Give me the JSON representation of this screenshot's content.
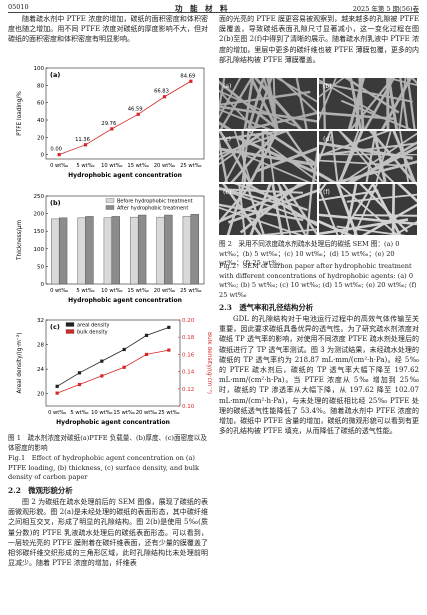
{
  "header": {
    "page": "05010",
    "journal": "功　能　材　料",
    "issue": "2025 年第 5 期(56)卷"
  },
  "left": {
    "intro": "随着疏水剂中 PTFE 浓度的增加，碳纸的面积密度和体积密度也随之增加。用不同 PTFE 浓度对碳纸的厚度影响不大，但对碳纸的面积密度和体积密度有明显影响。",
    "fig1_caption_cn": "图 1　疏水剂浓度对碳纸(a)PTFE 负载量、(b)厚度、(c)面密度以及体密度的影响",
    "fig1_caption_en": "Fig.1　Effect of hydrophobic agent concentration on (a) PTFE loading, (b) thickness, (c) surface density, and bulk density of carbon paper",
    "section_2_2": "2.2　微观形貌分析",
    "para_2_2": "图 2 为碳纸在疏水处理前后的 SEM 图像，展现了碳纸的表面微观形貌。图 2(a)是未经处理的碳纸的表面形态，其中碳纤维之间相互交叉，形成了明显的孔隙结构。图 2(b)是使用 5‰(质量分数)的 PTFE 乳液疏水处理后的碳纸表面形态。可以看到，一层较光亮的 PTFE 膜附着在碳纤维表面，还有少量的膜覆盖了相邻碳纤维交织形成的三角形区域，此时孔隙结构比未处理前明显减少。随着 PTFE 浓度的增加，纤维表"
  },
  "right": {
    "para_top": "面的光亮的 PTFE 膜更容易被观察到，越来越多的孔隙被 PTFE 膜覆盖，导致碳纸表面孔隙尺寸显著减小，这一变化过程在图 2(b)至图 2(f)中得到了清晰的展示。随着疏水剂乳液中 PTFE 浓度的增加，里层中更多的碳纤维也被 PTFE 薄膜包覆，更多的内部孔隙结构被 PTFE 薄膜覆盖。",
    "fig2_panels": [
      "(a)",
      "(b)",
      "(c)",
      "(d)",
      "(e)",
      "(f)"
    ],
    "fig2_caption_cn": "图 2　采用不同浓度疏水剂疏水处理后的碳纸 SEM 图：(a) 0 wt‰；(b) 5 wt‰；(c) 10 wt‰；(d) 15 wt‰；(e) 20 wt‰；(f) 25 wt‰",
    "fig2_caption_en": "Fig.2　SEM of carbon paper after hydrophobic treatment with different concentrations of hydrophobic agents: (a) 0 wt‰; (b) 5 wt‰; (c) 10 wt‰; (d) 15 wt‰; (e) 20 wt‰; (f) 25 wt‰",
    "section_2_3": "2.3　透气率和孔径结构分析",
    "para_2_3": "GDL 的孔隙结构对于电池运行过程中的高效气体传输至关重要，因此要求碳纸具备优异的透气性。为了研究疏水剂浓度对碳纸 TP 透气率的影响，对使用不同浓度 PTFE 疏水剂处理后的碳纸进行了 TP 透气率测试。图 3 为测试结果，未经疏水处理的碳纸的 TP 透气率约为 218.87 mL·mm/(cm²·h·Pa)。经 5‰ 的 PTFE 疏水剂后，碳纸的 TP 透气率大幅下降至 197.62 mL·mm/(cm²·h·Pa)。当 PTFE 浓度从 5‰ 增加到 25‰ 时，碳纸的 TP 渗透率从大幅下降，从 197.62 降至 102.07 mL·mm/(cm²·h·Pa)，与未处理的碳纸相比经 25‰ PTFE 处理的碳纸透气性能降低了 53.4%。随着疏水剂中 PTFE 浓度的增加，碳纸中 PTFE 含量的增加，碳纸的微观形貌可以看到有更多的孔结构被 PTFE 填充，从而降低了碳纸的透气性能。"
  },
  "chart_data": [
    {
      "type": "line",
      "panel": "(a)",
      "x_label": "Hydrophobic agent concentration",
      "y_label": "PTFE loading/%",
      "categories": [
        "0 wt‰",
        "5 wt‰",
        "10 wt‰",
        "15 wt‰",
        "20 wt‰",
        "25 wt‰"
      ],
      "values": [
        0,
        11.36,
        29.76,
        46.59,
        66.83,
        84.69
      ],
      "value_labels": [
        "0.00",
        "11.36",
        "29.76",
        "46.59",
        "66.83",
        "84.69"
      ],
      "color": "#d62728",
      "ylim": [
        -5,
        100
      ],
      "yticks": [
        0,
        20,
        40,
        60,
        80,
        100
      ]
    },
    {
      "type": "bar",
      "panel": "(b)",
      "x_label": "Hydrophobic agent concentration",
      "y_label": "Thickness/μm",
      "categories": [
        "0 wt‰",
        "5 wt‰",
        "10 wt‰",
        "15 wt‰",
        "20 wt‰",
        "25 wt‰"
      ],
      "series": [
        {
          "name": "Before hydrophobic treatment",
          "color": "#d9d9d9",
          "values": [
            185,
            188,
            188,
            190,
            190,
            192
          ]
        },
        {
          "name": "After hydrophobic treatment",
          "color": "#8c8c8c",
          "values": [
            188,
            192,
            192,
            196,
            196,
            198
          ]
        }
      ],
      "ylim": [
        0,
        250
      ],
      "yticks": [
        0,
        50,
        100,
        150,
        200,
        250
      ],
      "legend": "top"
    },
    {
      "type": "line",
      "panel": "(c)",
      "x_label": "Hydrophobic agent concentration",
      "y_label": "Areal density/(g·m⁻²)",
      "y2_label": "Bulk density/(g·cm⁻³)",
      "categories": [
        "0 wt‰",
        "5 wt‰",
        "10 wt‰",
        "15 wt‰",
        "20 wt‰",
        "25 wt‰"
      ],
      "series": [
        {
          "name": "areal density",
          "color": "#222222",
          "values": [
            21.2,
            23.4,
            25.3,
            27.2,
            29.5,
            30.8
          ]
        },
        {
          "name": "bulk density",
          "color": "#d62728",
          "axis": "y2",
          "values": [
            0.115,
            0.125,
            0.135,
            0.145,
            0.16,
            0.165
          ]
        }
      ],
      "ylim": [
        18,
        32
      ],
      "yticks": [
        20,
        24,
        28,
        32
      ],
      "y2lim": [
        0.1,
        0.2
      ],
      "y2ticks": [
        {
          "value": 0.1,
          "label": "0.10"
        },
        0.12,
        0.14,
        0.16,
        0.18,
        {
          "value": 0.2,
          "label": "0.20"
        }
      ],
      "legend": "upper left"
    }
  ]
}
